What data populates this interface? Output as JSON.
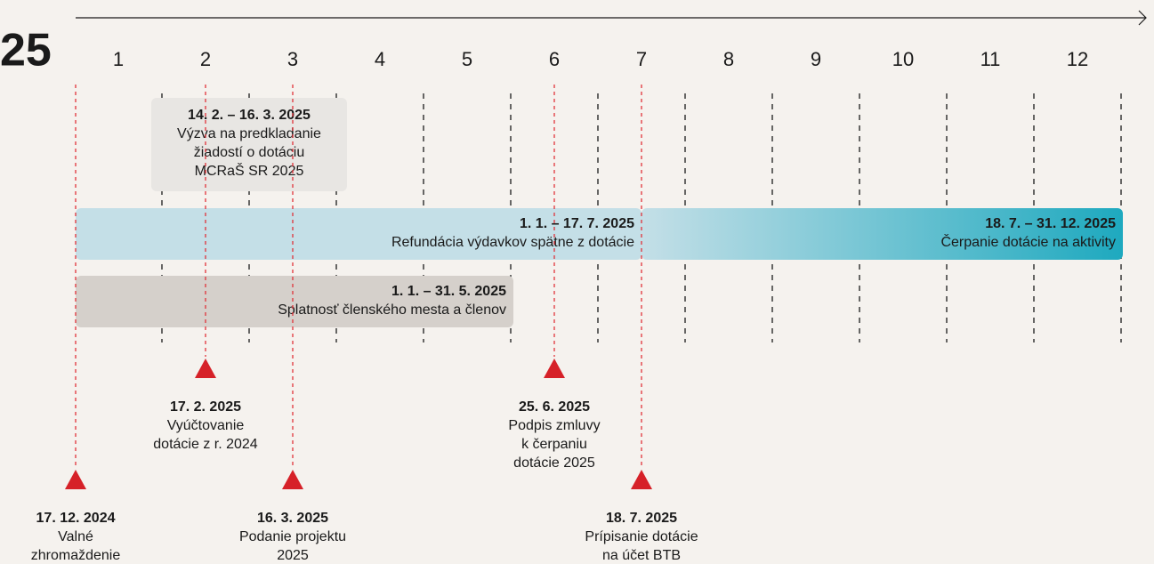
{
  "year": "25",
  "months": [
    "1",
    "2",
    "3",
    "4",
    "5",
    "6",
    "7",
    "8",
    "9",
    "10",
    "11",
    "12"
  ],
  "periods": [
    {
      "date": "14. 2. – 16. 3. 2025",
      "lines": [
        "Výzva na predkladanie",
        "žiadostí o dotáciu",
        "MCRaŠ SR 2025"
      ]
    },
    {
      "date": "1. 1. – 17. 7. 2025",
      "lines": [
        "Refundácia výdavkov spätne z dotácie"
      ]
    },
    {
      "date": "18. 7. – 31. 12. 2025",
      "lines": [
        "Čerpanie dotácie na aktivity"
      ]
    },
    {
      "date": "1. 1. – 31. 5. 2025",
      "lines": [
        "Splatnosť členského mesta a členov"
      ]
    }
  ],
  "milestones": [
    {
      "date": "17. 12. 2024",
      "lines": [
        "Valné",
        "zhromaždenie"
      ]
    },
    {
      "date": "17. 2. 2025",
      "lines": [
        "Vyúčtovanie",
        "dotácie z r. 2024"
      ]
    },
    {
      "date": "16. 3. 2025",
      "lines": [
        "Podanie projektu",
        "2025"
      ]
    },
    {
      "date": "25. 6. 2025",
      "lines": [
        "Podpis zmluvy",
        "k čerpaniu",
        "dotácie 2025"
      ]
    },
    {
      "date": "18. 7. 2025",
      "lines": [
        "Prípisanie dotácie",
        "na účet BTB"
      ]
    }
  ]
}
